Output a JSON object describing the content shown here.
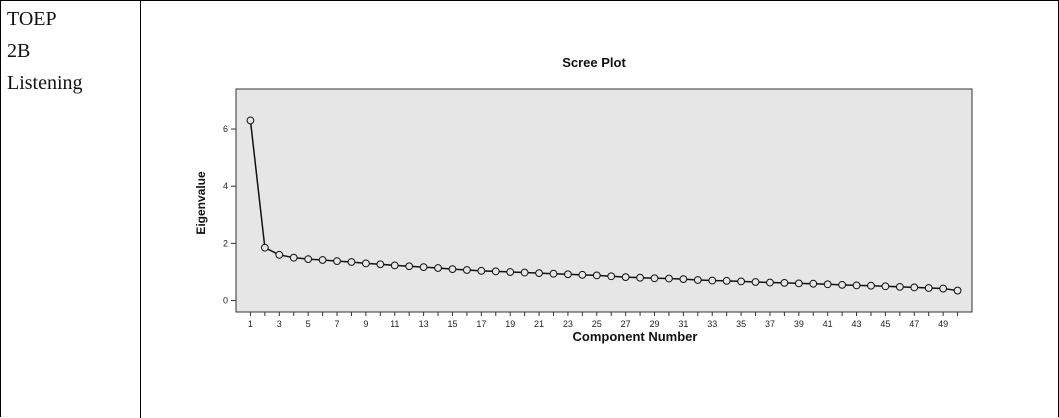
{
  "row_labels": [
    "TOEP",
    "2B",
    "Listening"
  ],
  "colors": {
    "plot_background": "#e6e6e6",
    "line": "#111111",
    "marker_fill": "#e6e6e6"
  },
  "chart_data": {
    "type": "line",
    "title": "Scree Plot",
    "xlabel": "Component Number",
    "ylabel": "Eigenvalue",
    "xlim": [
      0,
      51
    ],
    "ylim": [
      -0.4,
      7.4
    ],
    "yticks": [
      0,
      2,
      4,
      6
    ],
    "xtick_labels": [
      "1",
      "3",
      "5",
      "7",
      "9",
      "11",
      "13",
      "15",
      "17",
      "19",
      "21",
      "23",
      "25",
      "27",
      "29",
      "31",
      "33",
      "35",
      "37",
      "39",
      "41",
      "43",
      "45",
      "47",
      "49"
    ],
    "grid": false,
    "legend": "none",
    "x": [
      1,
      2,
      3,
      4,
      5,
      6,
      7,
      8,
      9,
      10,
      11,
      12,
      13,
      14,
      15,
      16,
      17,
      18,
      19,
      20,
      21,
      22,
      23,
      24,
      25,
      26,
      27,
      28,
      29,
      30,
      31,
      32,
      33,
      34,
      35,
      36,
      37,
      38,
      39,
      40,
      41,
      42,
      43,
      44,
      45,
      46,
      47,
      48,
      49,
      50
    ],
    "values": [
      6.3,
      1.85,
      1.6,
      1.5,
      1.45,
      1.42,
      1.38,
      1.35,
      1.3,
      1.27,
      1.23,
      1.2,
      1.17,
      1.14,
      1.1,
      1.07,
      1.04,
      1.02,
      1.0,
      0.98,
      0.96,
      0.94,
      0.92,
      0.9,
      0.88,
      0.85,
      0.82,
      0.8,
      0.78,
      0.77,
      0.75,
      0.72,
      0.7,
      0.69,
      0.67,
      0.65,
      0.63,
      0.62,
      0.6,
      0.59,
      0.57,
      0.55,
      0.53,
      0.52,
      0.5,
      0.48,
      0.46,
      0.44,
      0.42,
      0.35
    ]
  }
}
